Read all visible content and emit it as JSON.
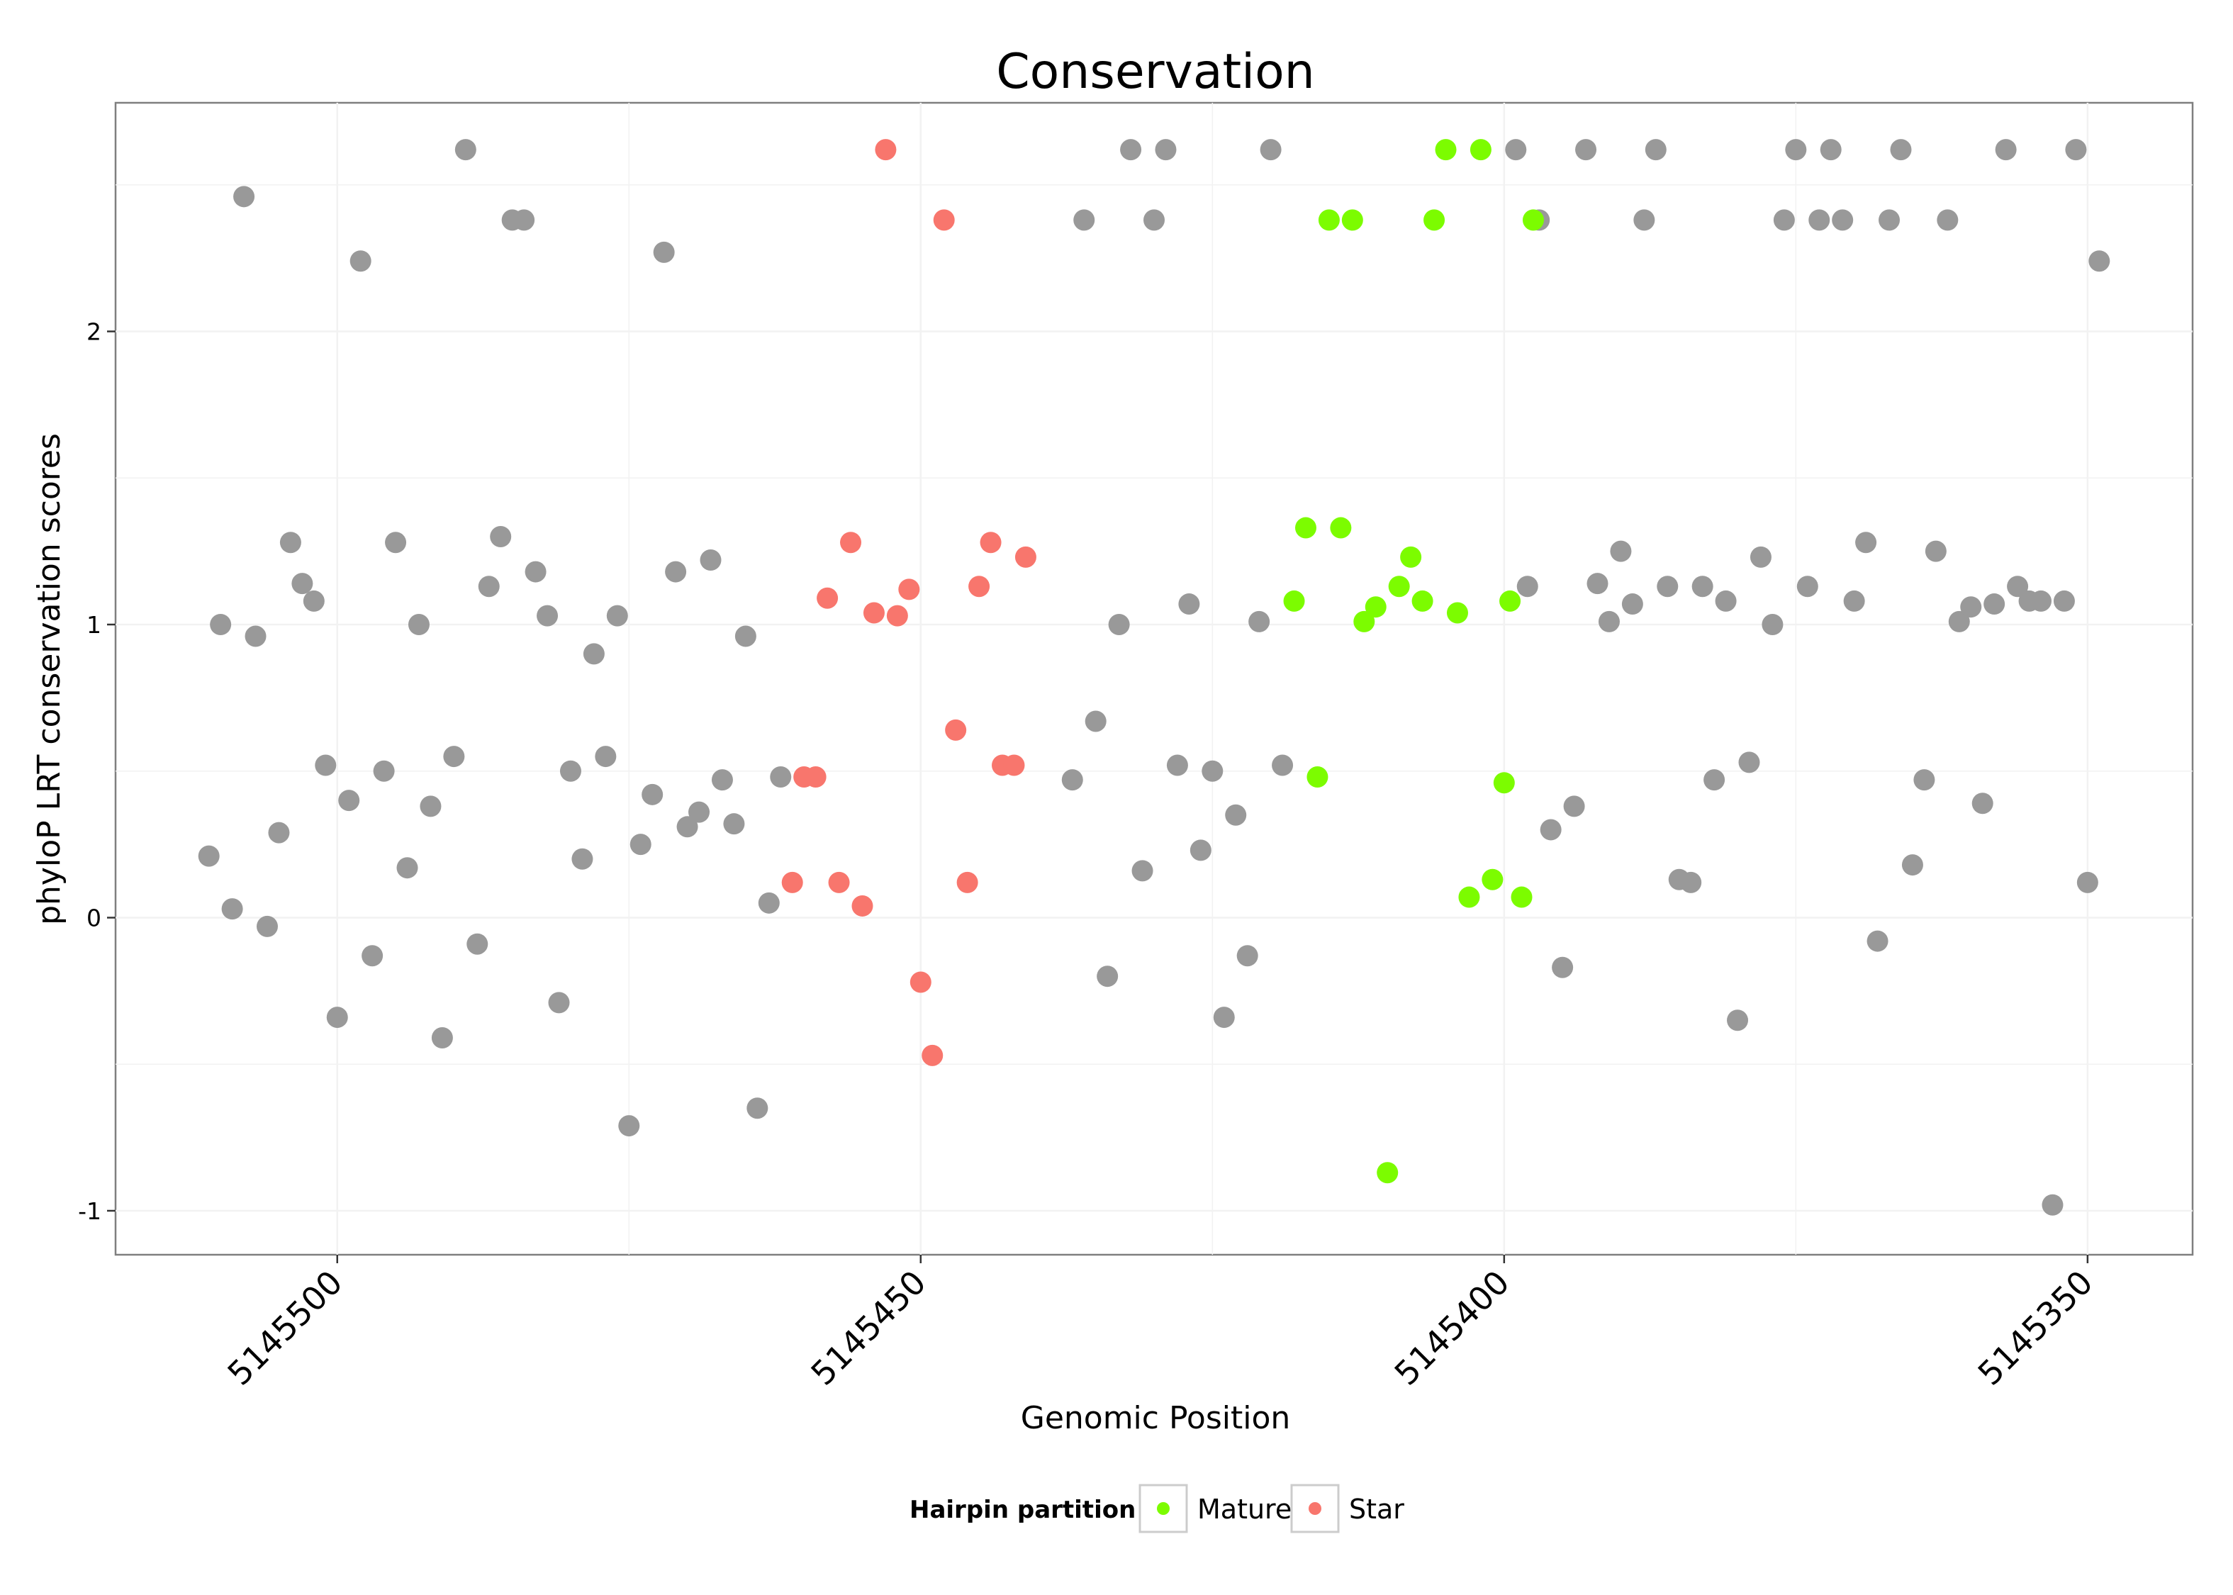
{
  "chart_data": {
    "type": "scatter",
    "title": "Conservation",
    "xlabel": "Genomic Position",
    "ylabel": "phyloP LRT conservation scores",
    "xlim": [
      5145519,
      5145341
    ],
    "ylim": [
      -1.15,
      2.78
    ],
    "x_reversed": true,
    "xticks": [
      5145500,
      5145450,
      5145400,
      5145350
    ],
    "xtick_labels": [
      "5145500",
      "5145450",
      "5145400",
      "5145350"
    ],
    "yticks": [
      -1,
      0,
      1,
      2
    ],
    "ytick_labels": [
      "-1",
      "0",
      "1",
      "2"
    ],
    "grid": true,
    "legend": {
      "title": "Hairpin partition",
      "position": "bottom",
      "entries": [
        {
          "label": "Mature",
          "color": "#7CFC00"
        },
        {
          "label": "Star",
          "color": "#F8766D"
        }
      ]
    },
    "colors": {
      "Other": "#999999",
      "Mature": "#7CFC00",
      "Star": "#F8766D"
    },
    "series": [
      {
        "name": "Other",
        "points": [
          [
            5145511,
            0.21
          ],
          [
            5145510,
            1.0
          ],
          [
            5145509,
            0.03
          ],
          [
            5145508,
            2.46
          ],
          [
            5145507,
            0.96
          ],
          [
            5145506,
            -0.03
          ],
          [
            5145505,
            0.29
          ],
          [
            5145504,
            1.28
          ],
          [
            5145503,
            1.14
          ],
          [
            5145502,
            1.08
          ],
          [
            5145501,
            0.52
          ],
          [
            5145500,
            -0.34
          ],
          [
            5145499,
            0.4
          ],
          [
            5145498,
            2.24
          ],
          [
            5145497,
            -0.13
          ],
          [
            5145496,
            0.5
          ],
          [
            5145495,
            1.28
          ],
          [
            5145494,
            0.17
          ],
          [
            5145493,
            1.0
          ],
          [
            5145492,
            0.38
          ],
          [
            5145491,
            -0.41
          ],
          [
            5145490,
            0.55
          ],
          [
            5145489,
            2.62
          ],
          [
            5145488,
            -0.09
          ],
          [
            5145487,
            1.13
          ],
          [
            5145486,
            1.3
          ],
          [
            5145485,
            2.38
          ],
          [
            5145484,
            2.38
          ],
          [
            5145483,
            1.18
          ],
          [
            5145482,
            1.03
          ],
          [
            5145481,
            -0.29
          ],
          [
            5145480,
            0.5
          ],
          [
            5145479,
            0.2
          ],
          [
            5145478,
            0.9
          ],
          [
            5145477,
            0.55
          ],
          [
            5145476,
            1.03
          ],
          [
            5145475,
            -0.71
          ],
          [
            5145474,
            0.25
          ],
          [
            5145473,
            0.42
          ],
          [
            5145472,
            2.27
          ],
          [
            5145471,
            1.18
          ],
          [
            5145470,
            0.31
          ],
          [
            5145469,
            0.36
          ],
          [
            5145468,
            1.22
          ],
          [
            5145467,
            0.47
          ],
          [
            5145466,
            0.32
          ],
          [
            5145465,
            0.96
          ],
          [
            5145464,
            -0.65
          ],
          [
            5145463,
            0.05
          ],
          [
            5145462,
            0.48
          ],
          [
            5145437,
            0.47
          ],
          [
            5145436,
            2.38
          ],
          [
            5145435,
            0.67
          ],
          [
            5145434,
            -0.2
          ],
          [
            5145433,
            1.0
          ],
          [
            5145432,
            2.62
          ],
          [
            5145431,
            0.16
          ],
          [
            5145430,
            2.38
          ],
          [
            5145429,
            2.62
          ],
          [
            5145428,
            0.52
          ],
          [
            5145427,
            1.07
          ],
          [
            5145426,
            0.23
          ],
          [
            5145425,
            0.5
          ],
          [
            5145424,
            -0.34
          ],
          [
            5145423,
            0.35
          ],
          [
            5145422,
            -0.13
          ],
          [
            5145421,
            1.01
          ],
          [
            5145420,
            2.62
          ],
          [
            5145419,
            0.52
          ],
          [
            5145399,
            2.62
          ],
          [
            5145398,
            1.13
          ],
          [
            5145397,
            2.38
          ],
          [
            5145396,
            0.3
          ],
          [
            5145395,
            -0.17
          ],
          [
            5145394,
            0.38
          ],
          [
            5145393,
            2.62
          ],
          [
            5145392,
            1.14
          ],
          [
            5145391,
            1.01
          ],
          [
            5145390,
            1.25
          ],
          [
            5145389,
            1.07
          ],
          [
            5145388,
            2.38
          ],
          [
            5145387,
            2.62
          ],
          [
            5145386,
            1.13
          ],
          [
            5145385,
            0.13
          ],
          [
            5145384,
            0.12
          ],
          [
            5145383,
            1.13
          ],
          [
            5145382,
            0.47
          ],
          [
            5145381,
            1.08
          ],
          [
            5145380,
            -0.35
          ],
          [
            5145379,
            0.53
          ],
          [
            5145378,
            1.23
          ],
          [
            5145377,
            1.0
          ],
          [
            5145376,
            2.38
          ],
          [
            5145375,
            2.62
          ],
          [
            5145374,
            1.13
          ],
          [
            5145373,
            2.38
          ],
          [
            5145372,
            2.62
          ],
          [
            5145371,
            2.38
          ],
          [
            5145370,
            1.08
          ],
          [
            5145369,
            1.28
          ],
          [
            5145368,
            -0.08
          ],
          [
            5145367,
            2.38
          ],
          [
            5145366,
            2.62
          ],
          [
            5145365,
            0.18
          ],
          [
            5145364,
            0.47
          ],
          [
            5145363,
            1.25
          ],
          [
            5145362,
            2.38
          ],
          [
            5145361,
            1.01
          ],
          [
            5145360,
            1.06
          ],
          [
            5145359,
            0.39
          ],
          [
            5145358,
            1.07
          ],
          [
            5145357,
            2.62
          ],
          [
            5145356,
            1.13
          ],
          [
            5145355,
            1.08
          ],
          [
            5145354,
            1.08
          ],
          [
            5145353,
            -0.98
          ],
          [
            5145352,
            1.08
          ],
          [
            5145351,
            2.62
          ],
          [
            5145350,
            0.12
          ],
          [
            5145349,
            2.24
          ]
        ]
      },
      {
        "name": "Mature",
        "points": [
          [
            5145418,
            1.08
          ],
          [
            5145417,
            1.33
          ],
          [
            5145416,
            0.48
          ],
          [
            5145415,
            2.38
          ],
          [
            5145414,
            1.33
          ],
          [
            5145413,
            2.38
          ],
          [
            5145412,
            1.01
          ],
          [
            5145411,
            1.06
          ],
          [
            5145410,
            -0.87
          ],
          [
            5145409,
            1.13
          ],
          [
            5145408,
            1.23
          ],
          [
            5145407,
            1.08
          ],
          [
            5145406,
            2.38
          ],
          [
            5145405,
            2.62
          ],
          [
            5145404,
            1.04
          ],
          [
            5145403,
            0.07
          ],
          [
            5145402,
            2.62
          ],
          [
            5145401,
            0.13
          ],
          [
            5145400,
            0.46
          ],
          [
            5145399.5,
            1.08
          ],
          [
            5145398.5,
            0.07
          ],
          [
            5145397.5,
            2.38
          ]
        ]
      },
      {
        "name": "Star",
        "points": [
          [
            5145461,
            0.12
          ],
          [
            5145460,
            0.48
          ],
          [
            5145459,
            0.48
          ],
          [
            5145458,
            1.09
          ],
          [
            5145457,
            0.12
          ],
          [
            5145456,
            1.28
          ],
          [
            5145455,
            0.04
          ],
          [
            5145454,
            1.04
          ],
          [
            5145453,
            2.62
          ],
          [
            5145452,
            1.03
          ],
          [
            5145451,
            1.12
          ],
          [
            5145450,
            -0.22
          ],
          [
            5145449,
            -0.47
          ],
          [
            5145448,
            2.38
          ],
          [
            5145447,
            0.64
          ],
          [
            5145446,
            0.12
          ],
          [
            5145445,
            1.13
          ],
          [
            5145444,
            1.28
          ],
          [
            5145443,
            0.52
          ],
          [
            5145442,
            0.52
          ],
          [
            5145441,
            1.23
          ]
        ]
      }
    ]
  }
}
